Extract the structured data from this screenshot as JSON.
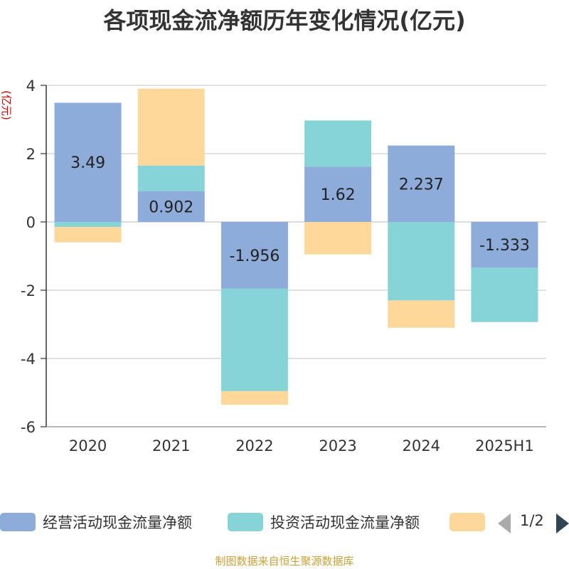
{
  "title": "各项现金流净额历年变化情况(亿元)",
  "source": "制图数据来自恒生聚源数据库",
  "legend": {
    "pager": "1/2"
  },
  "chart_data": {
    "type": "bar",
    "stacked": true,
    "ylabel": "(亿元)",
    "ylim": [
      -6,
      4
    ],
    "yticks": [
      4,
      2,
      0,
      -2,
      -4,
      -6
    ],
    "grid": true,
    "legend_position": "bottom",
    "categories": [
      "2020",
      "2021",
      "2022",
      "2023",
      "2024",
      "2025H1"
    ],
    "series": [
      {
        "name": "经营活动现金流量净额",
        "color": "#8eacd9",
        "values": [
          3.49,
          0.902,
          -1.956,
          1.62,
          2.237,
          -1.333
        ],
        "labels": [
          "3.49",
          "0.902",
          "-1.956",
          "1.62",
          "2.237",
          "-1.333"
        ]
      },
      {
        "name": "投资活动现金流量净额",
        "color": "#86d4d7",
        "values": [
          -0.15,
          0.75,
          -3.0,
          1.35,
          -2.3,
          -1.6
        ]
      },
      {
        "name": "",
        "color": "#fed89a",
        "values": [
          -0.45,
          2.25,
          -0.4,
          -0.95,
          -0.8,
          0
        ]
      }
    ]
  }
}
